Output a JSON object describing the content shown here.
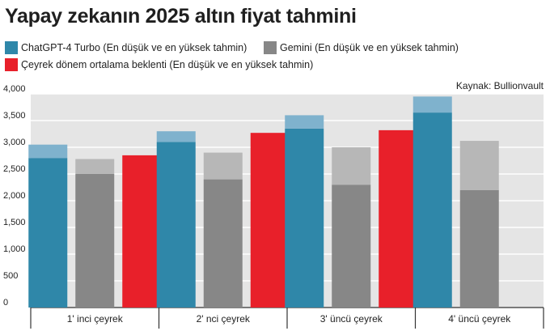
{
  "title": "Yapay zekanın 2025 altın fiyat tahmini",
  "source": "Kaynak: Bullionvault",
  "colors": {
    "chatgpt": "#2f87a9",
    "chatgpt_light": "#7fb2cd",
    "gemini": "#878787",
    "gemini_light": "#b7b7b7",
    "avg": "#e8202a",
    "panel": "#e5e5e5",
    "grid": "#ffffff"
  },
  "legend": [
    {
      "label": "ChatGPT-4 Turbo (En düşük ve en yüksek tahmin)",
      "color": "#2f87a9"
    },
    {
      "label": "Gemini (En düşük ve en yüksek tahmin)",
      "color": "#878787"
    },
    {
      "label": "Çeyrek dönem  ortalama beklenti (En düşük ve en yüksek tahmin)",
      "color": "#e8202a"
    }
  ],
  "chart_data": {
    "type": "bar",
    "title": "Yapay zekanın 2025 altın fiyat tahmini",
    "categories": [
      "1' inci çeyrek",
      "2' nci çeyrek",
      "3' üncü çeyrek",
      "4' üncü çeyrek"
    ],
    "ylim": [
      0,
      4000
    ],
    "yticks": [
      0,
      500,
      1000,
      1500,
      2000,
      2500,
      3000,
      3500,
      4000
    ],
    "ytick_labels": [
      "0",
      "500",
      "1,000",
      "1,500",
      "2,000",
      "2,500",
      "3,000",
      "3,500",
      "4,000"
    ],
    "grid": true,
    "series": [
      {
        "name": "ChatGPT-4 Turbo (En düşük ve en yüksek tahmin)",
        "low": [
          2800,
          3100,
          3350,
          3650
        ],
        "high": [
          3050,
          3300,
          3600,
          3950
        ]
      },
      {
        "name": "Gemini (En düşük ve en yüksek tahmin)",
        "low": [
          2500,
          2400,
          2300,
          2200
        ],
        "high": [
          2780,
          2900,
          3000,
          3120
        ]
      },
      {
        "name": "Çeyrek dönem  ortalama beklenti (En düşük ve en yüksek tahmin)",
        "values": [
          2850,
          3270,
          3320,
          null
        ]
      }
    ]
  }
}
